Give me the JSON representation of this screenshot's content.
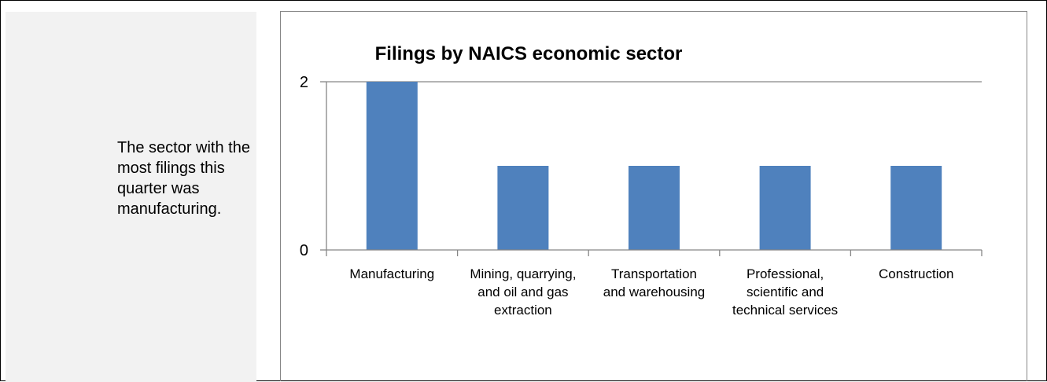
{
  "sidebar": {
    "summary_text": "The sector with the most filings this quarter was manufacturing."
  },
  "chart_data": {
    "type": "bar",
    "title": "Filings by NAICS economic sector",
    "xlabel": "",
    "ylabel": "",
    "categories": [
      "Manufacturing",
      "Mining, quarrying, and oil and gas extraction",
      "Transportation and warehousing",
      "Professional, scientific and technical services",
      "Construction"
    ],
    "category_label_lines": [
      [
        "Manufacturing"
      ],
      [
        "Mining, quarrying,",
        "and oil and gas",
        "extraction"
      ],
      [
        "Transportation",
        "and warehousing"
      ],
      [
        "Professional,",
        "scientific and",
        "technical services"
      ],
      [
        "Construction"
      ]
    ],
    "values": [
      2,
      1,
      1,
      1,
      1
    ],
    "ylim": [
      0,
      2
    ],
    "yticks": [
      0,
      2
    ],
    "grid": true,
    "legend": "none",
    "bar_color": "#4f81bd",
    "grid_color": "#868686"
  }
}
